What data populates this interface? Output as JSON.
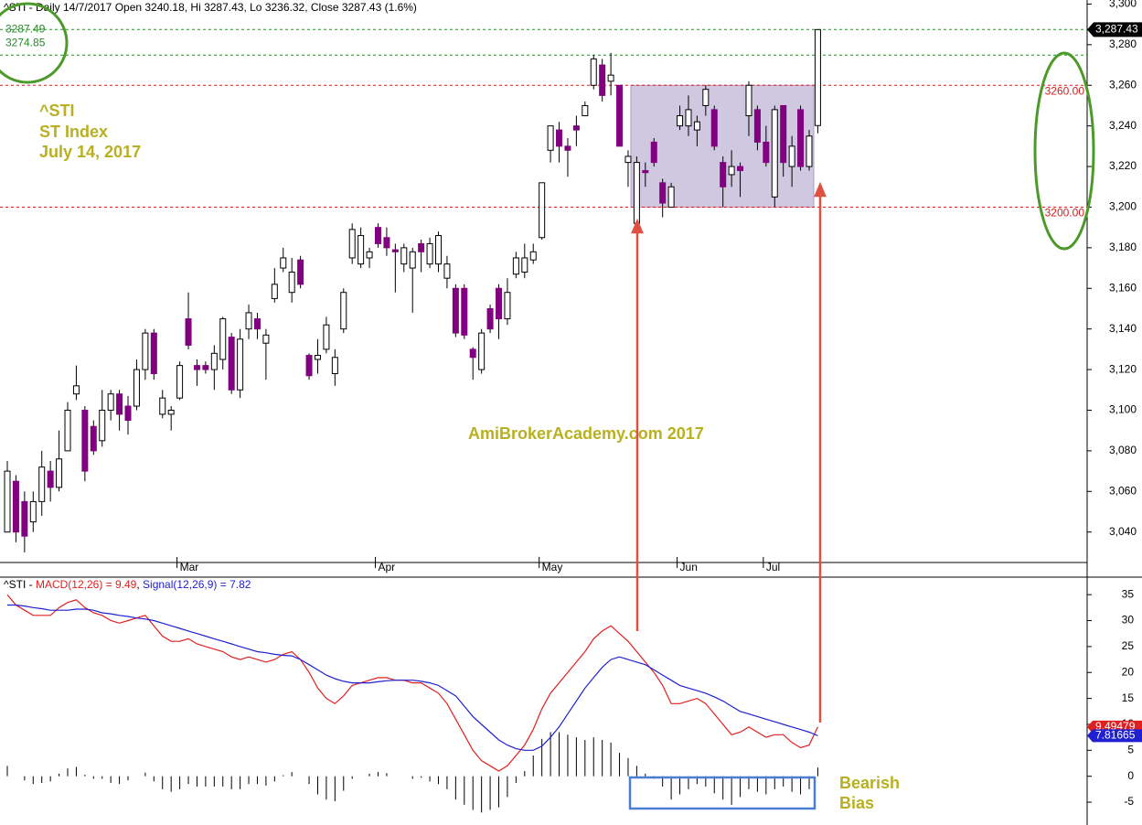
{
  "chart_data": {
    "type": "candlestick",
    "header": "^STI - Daily 14/7/2017 Open 3240.18, Hi 3287.43, Lo 3236.32, Close 3287.43 (1.6%)",
    "annotations": {
      "symbol": "^STI",
      "name": "ST Index",
      "date": "July 14, 2017",
      "watermark": "AmiBrokerAcademy.com  2017",
      "bias1": "Bearish",
      "bias2": "Bias"
    },
    "up_color": "#ffffff",
    "down_color": "#800080",
    "candles": {
      "open": [
        3040,
        3065,
        3055,
        3045,
        3055,
        3070,
        3062,
        3080,
        3108,
        3100,
        3092,
        3085,
        3100,
        3108,
        3102,
        3102,
        3120,
        3138,
        3098,
        3098,
        3106,
        3145,
        3122,
        3122,
        3120,
        3125,
        3136,
        3110,
        3140,
        3145,
        3133,
        3155,
        3170,
        3158,
        3174,
        3127,
        3125,
        3130,
        3118,
        3140,
        3175,
        3172,
        3175,
        3190,
        3185,
        3179,
        3172,
        3170,
        3182,
        3172,
        3172,
        3165,
        3160,
        3160,
        3130,
        3120,
        3150,
        3160,
        3145,
        3167,
        3168,
        3174,
        3185,
        3228,
        3238,
        3230,
        3240,
        3245,
        3260,
        3270,
        3262,
        3260,
        3222,
        3192,
        3218,
        3232,
        3212,
        3200,
        3240,
        3240,
        3238,
        3250,
        3248,
        3222,
        3216,
        3220,
        3245,
        3248,
        3232,
        3205,
        3250,
        3220,
        3248,
        3220,
        3240.18
      ],
      "high": [
        3075,
        3068,
        3060,
        3060,
        3080,
        3075,
        3090,
        3104,
        3122,
        3102,
        3095,
        3110,
        3110,
        3110,
        3107,
        3125,
        3140,
        3140,
        3110,
        3102,
        3124,
        3158,
        3125,
        3124,
        3132,
        3146,
        3138,
        3140,
        3152,
        3148,
        3140,
        3170,
        3180,
        3175,
        3176,
        3128,
        3135,
        3146,
        3130,
        3160,
        3192,
        3190,
        3180,
        3192,
        3190,
        3182,
        3182,
        3180,
        3184,
        3185,
        3188,
        3176,
        3162,
        3162,
        3131,
        3140,
        3152,
        3162,
        3165,
        3178,
        3182,
        3182,
        3212,
        3240,
        3242,
        3234,
        3245,
        3252,
        3275,
        3273,
        3276,
        3260,
        3228,
        3225,
        3222,
        3234,
        3214,
        3212,
        3250,
        3255,
        3245,
        3260,
        3250,
        3225,
        3228,
        3222,
        3262,
        3250,
        3240,
        3250,
        3250,
        3235,
        3250,
        3238,
        3287.43
      ],
      "low": [
        3040,
        3035,
        3030,
        3040,
        3048,
        3055,
        3060,
        3080,
        3105,
        3065,
        3078,
        3082,
        3095,
        3090,
        3088,
        3100,
        3115,
        3115,
        3096,
        3090,
        3105,
        3130,
        3112,
        3118,
        3110,
        3120,
        3108,
        3106,
        3135,
        3135,
        3115,
        3153,
        3168,
        3153,
        3160,
        3115,
        3118,
        3128,
        3112,
        3138,
        3172,
        3170,
        3170,
        3180,
        3176,
        3158,
        3168,
        3148,
        3168,
        3170,
        3168,
        3160,
        3136,
        3135,
        3115,
        3118,
        3138,
        3135,
        3142,
        3165,
        3165,
        3172,
        3184,
        3222,
        3222,
        3215,
        3230,
        3245,
        3258,
        3252,
        3255,
        3230,
        3210,
        3190,
        3210,
        3220,
        3195,
        3200,
        3238,
        3235,
        3230,
        3245,
        3228,
        3200,
        3210,
        3205,
        3235,
        3228,
        3220,
        3200,
        3215,
        3210,
        3218,
        3218,
        3236.32
      ],
      "close": [
        3070,
        3040,
        3038,
        3055,
        3072,
        3062,
        3076,
        3100,
        3112,
        3070,
        3080,
        3100,
        3108,
        3098,
        3095,
        3120,
        3138,
        3118,
        3106,
        3100,
        3122,
        3132,
        3120,
        3120,
        3128,
        3145,
        3110,
        3135,
        3148,
        3140,
        3137,
        3162,
        3175,
        3168,
        3162,
        3117,
        3127,
        3142,
        3126,
        3158,
        3189,
        3186,
        3178,
        3182,
        3180,
        3178,
        3180,
        3178,
        3178,
        3182,
        3186,
        3172,
        3138,
        3137,
        3126,
        3138,
        3140,
        3145,
        3158,
        3175,
        3175,
        3178,
        3212,
        3240,
        3230,
        3228,
        3238,
        3250,
        3273,
        3255,
        3265,
        3230,
        3225,
        3222,
        3217,
        3222,
        3202,
        3210,
        3245,
        3248,
        3242,
        3258,
        3230,
        3210,
        3220,
        3218,
        3260,
        3232,
        3222,
        3248,
        3222,
        3230,
        3220,
        3235,
        3287.43
      ]
    },
    "last_label": "3,287.43",
    "xticks": [
      {
        "value": 20,
        "label": "Mar"
      },
      {
        "value": 43,
        "label": "Apr"
      },
      {
        "value": 62,
        "label": "May"
      },
      {
        "value": 78,
        "label": "Jun"
      },
      {
        "value": 88,
        "label": "Jul"
      }
    ],
    "ylim": [
      3025,
      3302
    ],
    "yticks": [
      {
        "value": 3040,
        "label": "3,040"
      },
      {
        "value": 3060,
        "label": "3,060"
      },
      {
        "value": 3080,
        "label": "3,080"
      },
      {
        "value": 3100,
        "label": "3,100"
      },
      {
        "value": 3120,
        "label": "3,120"
      },
      {
        "value": 3140,
        "label": "3,140"
      },
      {
        "value": 3160,
        "label": "3,160"
      },
      {
        "value": 3180,
        "label": "3,180"
      },
      {
        "value": 3200,
        "label": "3,200"
      },
      {
        "value": 3220,
        "label": "3,220"
      },
      {
        "value": 3240,
        "label": "3,240"
      },
      {
        "value": 3260,
        "label": "3,260"
      },
      {
        "value": 3280,
        "label": "3,280"
      },
      {
        "value": 3300,
        "label": "3,300"
      }
    ],
    "levels": [
      {
        "value": 3287.49,
        "label": "3287.49",
        "color": "#2a8a2a"
      },
      {
        "value": 3274.85,
        "label": "3274.85",
        "color": "#2a8a2a"
      },
      {
        "value": 3260,
        "label": "3260.00",
        "color": "#d02020"
      },
      {
        "value": 3200,
        "label": "3200.00",
        "color": "#d02020"
      }
    ],
    "macd": {
      "title": {
        "prefix": "^STI - ",
        "macd": "MACD(12,26) = 9.49",
        "sep": ", ",
        "signal": "Signal(12,26,9) = 7.82"
      },
      "ylim": [
        -9.4,
        38.2
      ],
      "yticks": [
        -5,
        0,
        5,
        10,
        15,
        20,
        25,
        30,
        35
      ],
      "series": [
        {
          "name": "MACD",
          "color": "#e02020",
          "label": "9.49479",
          "values": [
            35,
            33,
            32,
            31,
            31,
            31,
            32.5,
            33.5,
            34,
            32.5,
            31.5,
            31,
            30,
            29.5,
            30,
            30.5,
            31,
            29,
            27,
            26,
            26,
            26.5,
            25.5,
            25,
            24.5,
            24,
            23,
            22.5,
            23,
            22.5,
            22,
            22.5,
            23.5,
            24,
            22.5,
            20,
            17,
            15,
            14,
            15.5,
            17.5,
            18,
            18.5,
            19,
            19,
            18.5,
            18.5,
            18,
            18,
            17,
            16,
            14,
            11,
            8,
            5,
            3,
            2,
            1,
            2,
            4,
            6,
            9,
            13,
            16,
            18,
            20,
            22,
            24,
            26.5,
            28,
            29,
            27.5,
            26,
            24,
            22,
            20,
            17.5,
            14,
            14,
            14.5,
            15,
            14,
            12,
            10,
            8,
            8.5,
            9.5,
            8.5,
            7.5,
            8,
            8,
            6.5,
            5.5,
            6,
            9.49479
          ]
        },
        {
          "name": "Signal",
          "color": "#2020d0",
          "label": "7.81665",
          "values": [
            33,
            33,
            32.8,
            32.5,
            32.3,
            32,
            32,
            32,
            32.2,
            32.2,
            32,
            31.5,
            31.3,
            31,
            30.8,
            30.5,
            30.3,
            30,
            29.5,
            29,
            28.5,
            28,
            27.5,
            27,
            26.5,
            26,
            25.5,
            25,
            24.5,
            24,
            23.8,
            23.5,
            23.3,
            23.2,
            22.5,
            21.5,
            20.5,
            19.5,
            18.8,
            18.3,
            18,
            18,
            18,
            18.2,
            18.4,
            18.5,
            18.5,
            18.5,
            18.3,
            18,
            17.5,
            16.5,
            15.5,
            13.5,
            11.5,
            10,
            8.5,
            7,
            6,
            5.3,
            5,
            5,
            5.8,
            7.5,
            9.5,
            12,
            14.5,
            17,
            19,
            21,
            22.5,
            23,
            22.5,
            22,
            21.5,
            20.5,
            19.5,
            18.5,
            17.5,
            17,
            16.5,
            16,
            15.3,
            14.5,
            13.5,
            12.5,
            12,
            11.5,
            11,
            10.5,
            10,
            9.5,
            9,
            8.5,
            7.81665
          ]
        }
      ],
      "histogram": [
        2,
        0,
        -0.8,
        -1.5,
        -1.3,
        -1,
        0.5,
        1.5,
        1.8,
        0.3,
        -0.5,
        -0.5,
        -1.3,
        -1.5,
        -0.8,
        0,
        0.7,
        -1,
        -2.5,
        -3,
        -2.5,
        -1.5,
        -2,
        -2,
        -2,
        -2,
        -2.5,
        -2.5,
        -1.5,
        -1.5,
        -1.8,
        -1,
        0.2,
        0.8,
        0,
        -1.5,
        -3.5,
        -4.5,
        -4.8,
        -2.8,
        -0.5,
        0,
        0.5,
        0.8,
        0.6,
        0,
        0,
        -0.5,
        -0.3,
        -1,
        -1.5,
        -2.5,
        -4.5,
        -5.5,
        -6.5,
        -7,
        -6.5,
        -6,
        -4,
        -1.3,
        1,
        4,
        7.2,
        8.5,
        8.5,
        8,
        7.5,
        7,
        7.5,
        7,
        6.5,
        4.5,
        3.5,
        2,
        0.5,
        -0.5,
        -2,
        -4.5,
        -3.5,
        -2.5,
        -1.5,
        -2,
        -3.3,
        -4.5,
        -5.5,
        -4,
        -2.5,
        -3,
        -3.5,
        -2.5,
        -2,
        -3,
        -3.5,
        -2.5,
        1.67
      ]
    }
  }
}
